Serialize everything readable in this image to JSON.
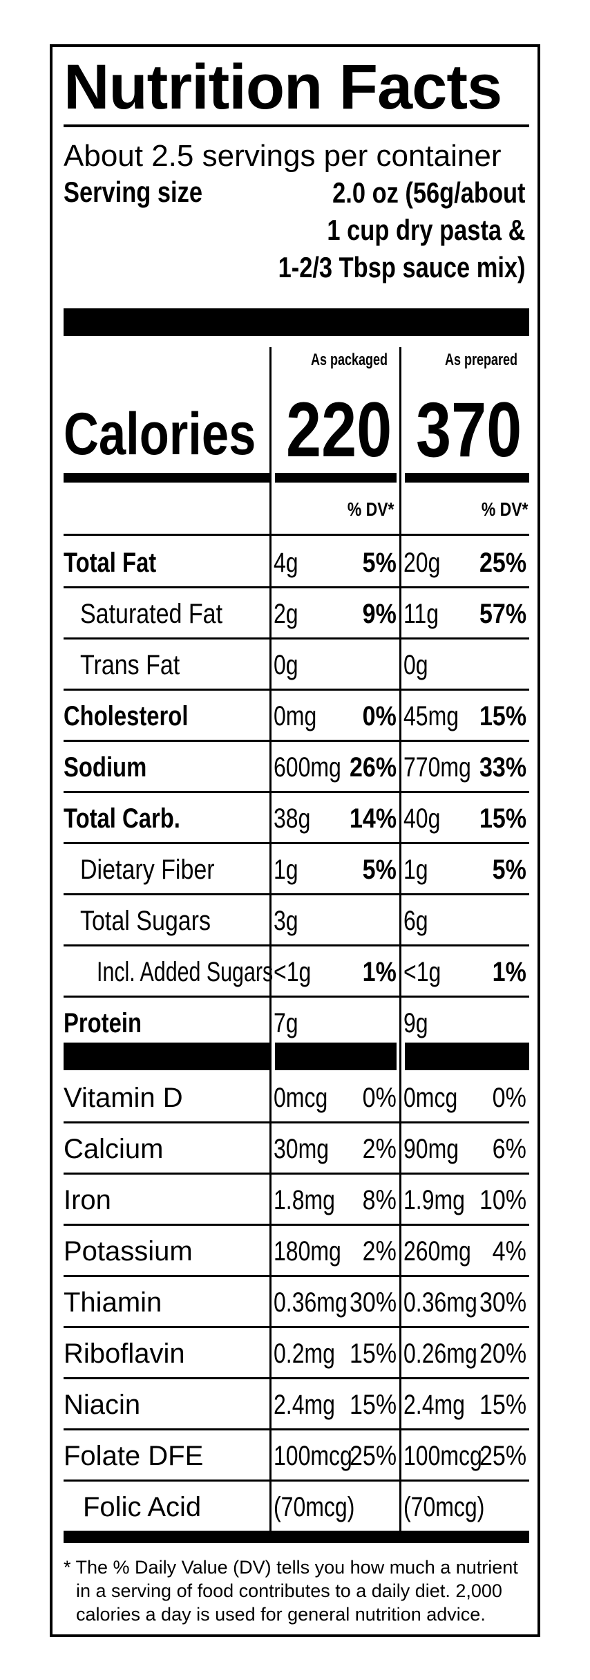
{
  "title": "Nutrition Facts",
  "servings_per_container": "About 2.5 servings per container",
  "serving_size": {
    "label": "Serving size",
    "value_lines": [
      "2.0 oz (56g/about",
      "1 cup dry pasta &",
      "1-2/3 Tbsp sauce mix)"
    ]
  },
  "columns": {
    "packaged": "As packaged",
    "prepared": "As prepared"
  },
  "calories": {
    "label": "Calories",
    "packaged": "220",
    "prepared": "370"
  },
  "dv_header": "% DV*",
  "nutrients": [
    {
      "label": "Total Fat",
      "pa": "4g",
      "pd": "5%",
      "ra": "20g",
      "rd": "25%"
    },
    {
      "label": "Saturated Fat",
      "pa": "2g",
      "pd": "9%",
      "ra": "11g",
      "rd": "57%"
    },
    {
      "label": "Trans Fat",
      "pa": "0g",
      "pd": "",
      "ra": "0g",
      "rd": ""
    },
    {
      "label": "Cholesterol",
      "pa": "0mg",
      "pd": "0%",
      "ra": "45mg",
      "rd": "15%"
    },
    {
      "label": "Sodium",
      "pa": "600mg",
      "pd": "26%",
      "ra": "770mg",
      "rd": "33%"
    },
    {
      "label": "Total Carb.",
      "pa": "38g",
      "pd": "14%",
      "ra": "40g",
      "rd": "15%"
    },
    {
      "label": "Dietary Fiber",
      "pa": "1g",
      "pd": "5%",
      "ra": "1g",
      "rd": "5%"
    },
    {
      "label": "Total Sugars",
      "pa": "3g",
      "pd": "",
      "ra": "6g",
      "rd": ""
    },
    {
      "label": "Incl. Added Sugars",
      "pa": "<1g",
      "pd": "1%",
      "ra": "<1g",
      "rd": "1%"
    },
    {
      "label": "Protein",
      "pa": "7g",
      "pd": "",
      "ra": "9g",
      "rd": ""
    }
  ],
  "vitamins": [
    {
      "label": "Vitamin D",
      "pa": "0mcg",
      "pd": "0%",
      "ra": "0mcg",
      "rd": "0%"
    },
    {
      "label": "Calcium",
      "pa": "30mg",
      "pd": "2%",
      "ra": "90mg",
      "rd": "6%"
    },
    {
      "label": "Iron",
      "pa": "1.8mg",
      "pd": "8%",
      "ra": "1.9mg",
      "rd": "10%"
    },
    {
      "label": "Potassium",
      "pa": "180mg",
      "pd": "2%",
      "ra": "260mg",
      "rd": "4%"
    },
    {
      "label": "Thiamin",
      "pa": "0.36mg",
      "pd": "30%",
      "ra": "0.36mg",
      "rd": "30%"
    },
    {
      "label": "Riboflavin",
      "pa": "0.2mg",
      "pd": "15%",
      "ra": "0.26mg",
      "rd": "20%"
    },
    {
      "label": "Niacin",
      "pa": "2.4mg",
      "pd": "15%",
      "ra": "2.4mg",
      "rd": "15%"
    },
    {
      "label": "Folate DFE",
      "pa": "100mcg",
      "pd": "25%",
      "ra": "100mcg",
      "rd": "25%"
    },
    {
      "label": "Folic Acid",
      "pa": "(70mcg)",
      "pd": "",
      "ra": "(70mcg)",
      "rd": ""
    }
  ],
  "footnote_lines": [
    "* The % Daily Value (DV) tells you how much a nutrient",
    "in a serving of food contributes to a daily diet. 2,000",
    "calories a day is used for general nutrition advice."
  ]
}
